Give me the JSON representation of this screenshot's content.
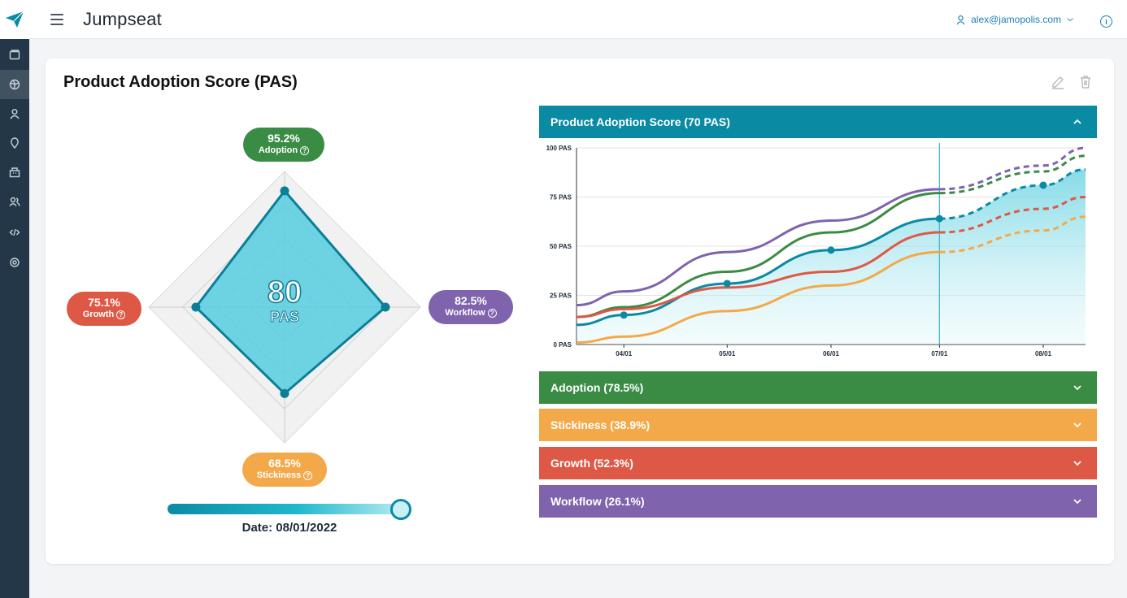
{
  "app": {
    "title": "Jumpseat"
  },
  "user": {
    "email": "alex@jamopolis.com"
  },
  "sidebar": {
    "items": [
      {
        "icon": "folder-icon"
      },
      {
        "icon": "globe-icon",
        "active": true
      },
      {
        "icon": "user-icon"
      },
      {
        "icon": "pin-icon"
      },
      {
        "icon": "building-icon"
      },
      {
        "icon": "people-icon"
      },
      {
        "icon": "code-icon"
      },
      {
        "icon": "settings-icon"
      }
    ]
  },
  "card": {
    "title": "Product Adoption Score (PAS)"
  },
  "radar": {
    "score": "80",
    "unit": "PAS",
    "adoption": {
      "value": "95.2%",
      "label": "Adoption",
      "color": "#3a8c45",
      "pct": 0.952
    },
    "workflow": {
      "value": "82.5%",
      "label": "Workflow",
      "color": "#7f63ad",
      "pct": 0.825
    },
    "stickiness": {
      "value": "68.5%",
      "label": "Stickiness",
      "color": "#f3a94a",
      "pct": 0.685
    },
    "growth": {
      "value": "75.1%",
      "label": "Growth",
      "color": "#de5846",
      "pct": 0.751
    },
    "date_label": "Date: 08/01/2022",
    "slider_fraction": 1.0
  },
  "panels": {
    "main": {
      "label": "Product Adoption Score (70 PAS)",
      "color": "#0b8aa3"
    },
    "adoption": {
      "label": "Adoption (78.5%)",
      "color": "#3a8c45"
    },
    "stickiness": {
      "label": "Stickiness (38.9%)",
      "color": "#f3a94a"
    },
    "growth": {
      "label": "Growth (52.3%)",
      "color": "#de5846"
    },
    "workflow": {
      "label": "Workflow (26.1%)",
      "color": "#7f63ad"
    }
  },
  "chart_data": {
    "type": "line",
    "x": [
      "03/16",
      "04/01",
      "05/01",
      "06/01",
      "07/01",
      "08/01",
      "08/15"
    ],
    "xticks": [
      "04/01",
      "05/01",
      "06/01",
      "07/01",
      "08/01"
    ],
    "yticks": [
      "0 PAS",
      "25 PAS",
      "50 PAS",
      "75 PAS",
      "100 PAS"
    ],
    "ylim": [
      0,
      100
    ],
    "current_x": "07/01",
    "series": [
      {
        "color": "#7f63ad",
        "values": [
          20,
          27,
          47,
          63,
          79,
          91,
          100
        ]
      },
      {
        "color": "#3a8c45",
        "values": [
          14,
          19,
          37,
          57,
          77,
          88,
          96
        ]
      },
      {
        "color": "#0b8aa3",
        "values": [
          10,
          15,
          31,
          48,
          64,
          81,
          89
        ]
      },
      {
        "color": "#de5846",
        "values": [
          14,
          18,
          29,
          37,
          57,
          69,
          75
        ]
      },
      {
        "color": "#f3a94a",
        "values": [
          1,
          4,
          17,
          30,
          47,
          58,
          65
        ]
      }
    ],
    "markers_series": 2,
    "markers_x": [
      "04/01",
      "05/01",
      "06/01",
      "07/01",
      "08/01"
    ]
  }
}
